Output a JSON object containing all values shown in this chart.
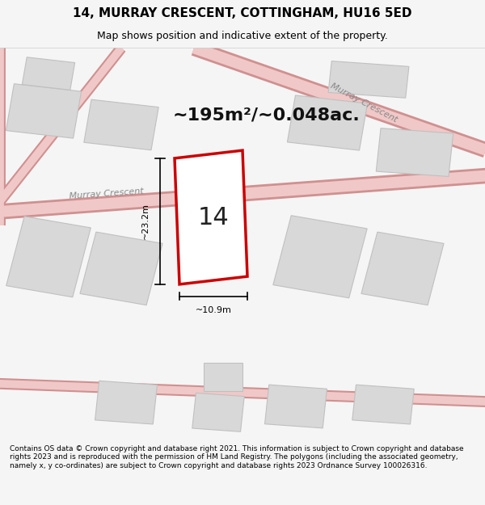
{
  "title": "14, MURRAY CRESCENT, COTTINGHAM, HU16 5ED",
  "subtitle": "Map shows position and indicative extent of the property.",
  "area_text": "~195m²/~0.048ac.",
  "number_label": "14",
  "dim_height": "~23.2m",
  "dim_width": "~10.9m",
  "street_label_1": "Murray Crescent",
  "street_label_2": "Murray Crescent",
  "footer": "Contains OS data © Crown copyright and database right 2021. This information is subject to Crown copyright and database rights 2023 and is reproduced with the permission of HM Land Registry. The polygons (including the associated geometry, namely x, y co-ordinates) are subject to Crown copyright and database rights 2023 Ordnance Survey 100026316.",
  "bg_color": "#f5f5f5",
  "map_bg": "#ffffff",
  "road_color": "#f0c8c8",
  "road_outline_color": "#e08080",
  "building_fill": "#d8d8d8",
  "building_edge": "#c0c0c0",
  "highlight_color": "#cc0000",
  "highlight_fill": "#ffffff",
  "street_text_color": "#888888",
  "dim_line_color": "#000000",
  "title_fontsize": 11,
  "subtitle_fontsize": 9,
  "area_fontsize": 16,
  "label_fontsize": 22,
  "footer_fontsize": 6.5
}
